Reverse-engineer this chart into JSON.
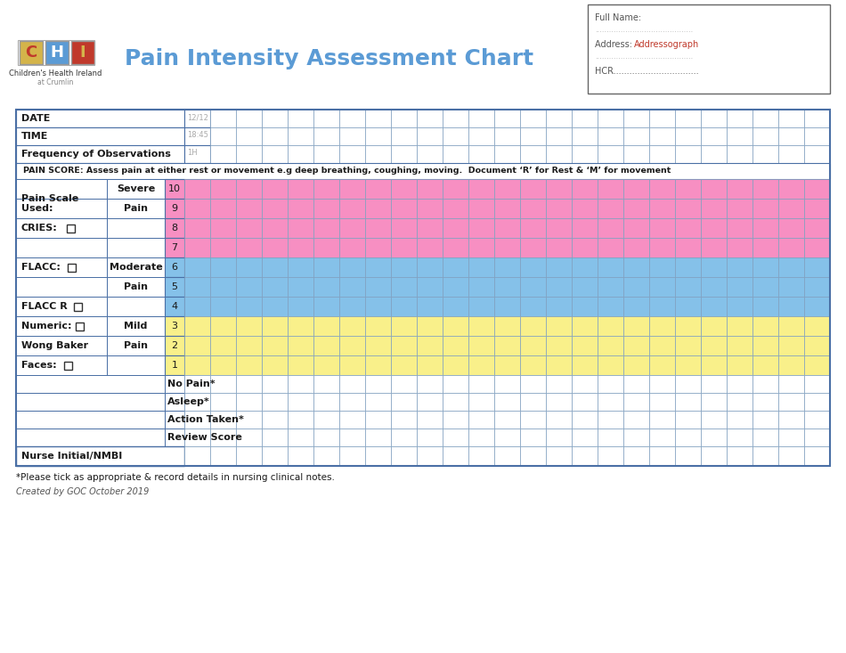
{
  "title": "Pain Intensity Assessment Chart",
  "title_color": "#5b9bd5",
  "title_fontsize": 18,
  "bg_color": "#ffffff",
  "grid_color": "#7f9fbf",
  "border_color": "#4a6fa5",
  "pink_color": "#f78fc2",
  "blue_color": "#85c1e9",
  "yellow_color": "#f9f08a",
  "white_color": "#ffffff",
  "header_rows": [
    "DATE",
    "TIME",
    "Frequency of Observations"
  ],
  "header_example": [
    "12/12",
    "18:45",
    "1H"
  ],
  "pain_score_text": "PAIN SCORE: Assess pain at either rest or movement e.g deep breathing, coughing, moving.  Document ‘R’ for Rest & ‘M’ for movement",
  "score_rows": [
    {
      "label": "10",
      "category": "Severe",
      "color": "pink"
    },
    {
      "label": "9",
      "category": "Pain",
      "color": "pink"
    },
    {
      "label": "8",
      "category": "",
      "color": "pink"
    },
    {
      "label": "7",
      "category": "",
      "color": "pink"
    },
    {
      "label": "6",
      "category": "Moderate",
      "color": "blue"
    },
    {
      "label": "5",
      "category": "Pain",
      "color": "blue"
    },
    {
      "label": "4",
      "category": "",
      "color": "blue"
    },
    {
      "label": "3",
      "category": "Mild",
      "color": "yellow"
    },
    {
      "label": "2",
      "category": "Pain",
      "color": "yellow"
    },
    {
      "label": "1",
      "category": "",
      "color": "yellow"
    }
  ],
  "extra_rows": [
    "No Pain*",
    "Asleep*",
    "Action Taken*",
    "Review Score"
  ],
  "bottom_row": "Nurse Initial/NMBI",
  "footnote1": "*Please tick as appropriate & record details in nursing clinical notes.",
  "footnote2": "Created by GOC October 2019",
  "num_data_cols": 25,
  "addressograph": {
    "full_name_label": "Full Name:",
    "address_label": "Address:",
    "address_value": "Addressograph",
    "hcr_label": "HCR",
    "dotted_line": "..........................................",
    "hcr_dotted": "................................"
  },
  "cat_labels": {
    "0": "Severe",
    "1": "Pain",
    "4": "Moderate",
    "5": "Pain",
    "7": "Mild",
    "8": "Pain"
  }
}
